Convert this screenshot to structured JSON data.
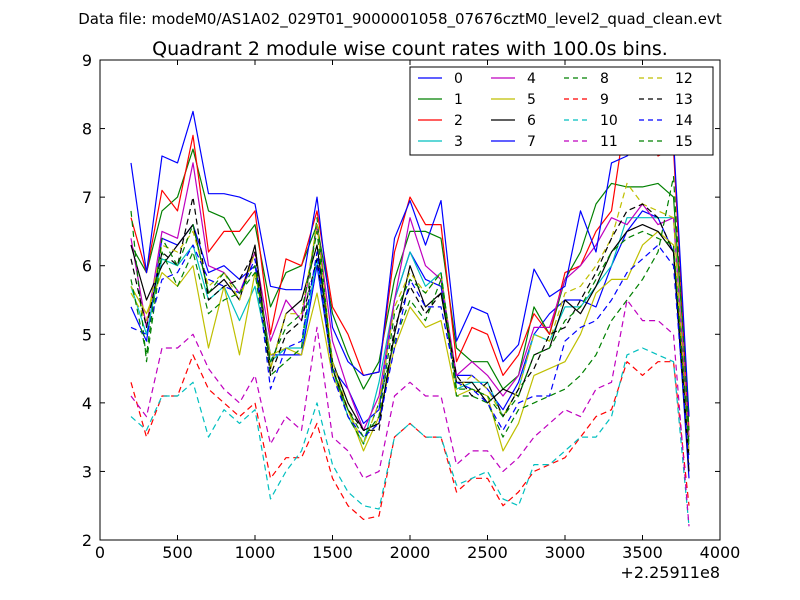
{
  "chart_data": {
    "type": "line",
    "suptitle": "Data file: modeM0/AS1A02_029T01_9000001058_07676cztM0_level2_quad_clean.evt",
    "title": "Quadrant 2 module wise count rates with 100.0s bins.",
    "xlabel": "",
    "ylabel": "",
    "x_offset_label": "+2.25911e8",
    "xlim": [
      0,
      4000
    ],
    "ylim": [
      2,
      9
    ],
    "xticks": [
      0,
      500,
      1000,
      1500,
      2000,
      2500,
      3000,
      3500,
      4000
    ],
    "yticks": [
      2,
      3,
      4,
      5,
      6,
      7,
      8,
      9
    ],
    "grid": false,
    "legend_position": "top-right",
    "x": [
      200,
      300,
      400,
      500,
      600,
      700,
      800,
      900,
      1000,
      1100,
      1200,
      1300,
      1400,
      1500,
      1600,
      1700,
      1800,
      1900,
      2000,
      2100,
      2200,
      2300,
      2400,
      2500,
      2600,
      2700,
      2800,
      2900,
      3000,
      3100,
      3200,
      3300,
      3400,
      3500,
      3600,
      3700,
      3800
    ],
    "series": [
      {
        "name": "0",
        "color": "#0000ff",
        "style": "solid",
        "values": [
          5.4,
          4.9,
          6.4,
          6.3,
          6.6,
          5.9,
          6.0,
          5.8,
          6.0,
          4.7,
          4.7,
          4.7,
          6.0,
          4.5,
          4.2,
          3.7,
          3.9,
          5.5,
          6.2,
          5.8,
          5.7,
          4.4,
          4.4,
          4.2,
          3.9,
          4.3,
          5.0,
          5.3,
          5.5,
          5.5,
          5.4,
          6.0,
          6.5,
          6.8,
          6.7,
          6.2,
          2.9
        ]
      },
      {
        "name": "1",
        "color": "#008000",
        "style": "solid",
        "values": [
          6.3,
          5.9,
          6.8,
          7.0,
          7.7,
          6.8,
          6.7,
          6.3,
          6.6,
          5.4,
          5.9,
          6.0,
          6.6,
          5.3,
          4.7,
          4.2,
          4.6,
          5.8,
          6.5,
          6.5,
          6.4,
          4.8,
          4.6,
          4.6,
          4.2,
          4.4,
          5.4,
          5.0,
          5.8,
          6.2,
          6.9,
          7.2,
          7.15,
          7.15,
          7.2,
          7.0,
          3.8
        ]
      },
      {
        "name": "2",
        "color": "#ff0000",
        "style": "solid",
        "values": [
          6.7,
          5.9,
          7.1,
          6.8,
          7.9,
          6.2,
          6.5,
          6.5,
          6.8,
          5.0,
          6.1,
          6.0,
          6.8,
          5.4,
          5.0,
          4.4,
          4.45,
          6.2,
          7.0,
          6.6,
          6.6,
          4.6,
          5.1,
          5.0,
          4.4,
          4.7,
          5.3,
          5.0,
          5.9,
          6.0,
          6.5,
          6.8,
          8.3,
          8.0,
          7.6,
          7.7,
          3.6
        ]
      },
      {
        "name": "3",
        "color": "#00bfbf",
        "style": "solid",
        "values": [
          5.7,
          5.0,
          6.1,
          6.0,
          6.3,
          5.5,
          5.7,
          5.2,
          5.7,
          4.6,
          4.8,
          4.8,
          6.1,
          4.5,
          3.8,
          3.4,
          4.3,
          5.5,
          6.2,
          5.7,
          5.9,
          4.2,
          4.3,
          4.3,
          3.8,
          4.2,
          5.0,
          4.9,
          5.4,
          5.4,
          5.7,
          6.0,
          6.7,
          6.7,
          6.7,
          6.7,
          3.4
        ]
      },
      {
        "name": "4",
        "color": "#bf00bf",
        "style": "solid",
        "values": [
          6.4,
          5.1,
          6.5,
          6.4,
          7.5,
          6.0,
          5.9,
          5.6,
          6.2,
          4.9,
          5.5,
          5.2,
          6.6,
          4.9,
          4.2,
          3.6,
          4.1,
          5.5,
          6.7,
          6.0,
          5.8,
          4.4,
          4.6,
          4.4,
          4.1,
          4.4,
          5.1,
          5.1,
          5.8,
          6.0,
          6.3,
          6.7,
          6.6,
          6.9,
          6.6,
          6.7,
          3.5
        ]
      },
      {
        "name": "5",
        "color": "#bfbf00",
        "style": "solid",
        "values": [
          5.7,
          5.3,
          5.9,
          5.7,
          6.0,
          4.8,
          5.7,
          4.7,
          5.9,
          4.7,
          4.8,
          4.7,
          5.6,
          4.4,
          3.9,
          3.3,
          3.8,
          4.8,
          5.4,
          5.1,
          5.2,
          4.1,
          4.2,
          4.1,
          3.3,
          3.7,
          4.4,
          4.5,
          4.6,
          5.0,
          5.6,
          5.8,
          5.8,
          6.3,
          6.5,
          6.3,
          3.3
        ]
      },
      {
        "name": "6",
        "color": "#000000",
        "style": "solid",
        "values": [
          6.3,
          5.5,
          6.0,
          6.3,
          6.6,
          5.6,
          5.8,
          5.5,
          6.3,
          4.5,
          5.3,
          5.5,
          6.3,
          4.6,
          4.0,
          3.6,
          3.7,
          5.0,
          6.0,
          5.4,
          5.6,
          4.3,
          4.3,
          4.0,
          4.2,
          4.1,
          4.7,
          4.8,
          5.5,
          5.3,
          5.7,
          6.2,
          6.5,
          6.6,
          6.5,
          6.2,
          3.0
        ]
      },
      {
        "name": "7",
        "color": "#0000ff",
        "style": "solid",
        "values": [
          7.5,
          5.9,
          7.6,
          7.5,
          8.25,
          7.05,
          7.05,
          7.0,
          6.9,
          5.7,
          5.65,
          5.65,
          7.0,
          5.1,
          4.6,
          4.4,
          4.45,
          6.4,
          6.95,
          6.3,
          6.95,
          4.9,
          5.4,
          5.3,
          4.6,
          4.85,
          5.95,
          5.55,
          5.7,
          6.8,
          6.2,
          7.5,
          7.6,
          7.8,
          8.05,
          7.85,
          3.8
        ]
      },
      {
        "name": "8",
        "color": "#008000",
        "style": "dashed",
        "values": [
          6.8,
          4.6,
          6.2,
          5.7,
          6.2,
          5.3,
          5.5,
          5.6,
          5.9,
          4.4,
          4.6,
          4.8,
          6.7,
          4.5,
          3.8,
          3.4,
          4.0,
          4.9,
          5.5,
          5.2,
          5.8,
          4.1,
          4.1,
          4.0,
          3.5,
          3.9,
          4.0,
          4.1,
          4.2,
          4.4,
          4.7,
          5.2,
          5.5,
          5.8,
          6.2,
          7.3,
          3.6
        ]
      },
      {
        "name": "9",
        "color": "#ff0000",
        "style": "dashed",
        "values": [
          4.3,
          3.5,
          4.1,
          4.1,
          4.7,
          4.2,
          4.0,
          3.8,
          4.0,
          2.9,
          3.2,
          3.2,
          3.7,
          2.9,
          2.5,
          2.3,
          2.35,
          3.5,
          3.7,
          3.5,
          3.5,
          2.7,
          2.9,
          2.9,
          2.5,
          2.7,
          3.0,
          3.1,
          3.2,
          3.5,
          3.8,
          3.9,
          4.6,
          4.4,
          4.6,
          4.6,
          2.5
        ]
      },
      {
        "name": "10",
        "color": "#00bfbf",
        "style": "dashed",
        "values": [
          3.8,
          3.6,
          4.1,
          4.1,
          4.3,
          3.5,
          3.9,
          3.7,
          3.9,
          2.6,
          3.0,
          3.3,
          4.0,
          3.1,
          2.7,
          2.5,
          2.45,
          3.5,
          3.7,
          3.5,
          3.5,
          2.8,
          2.9,
          3.0,
          2.6,
          2.5,
          3.1,
          3.1,
          3.3,
          3.5,
          3.5,
          3.8,
          4.7,
          4.8,
          4.7,
          4.6,
          2.2
        ]
      },
      {
        "name": "11",
        "color": "#bf00bf",
        "style": "dashed",
        "values": [
          4.1,
          3.8,
          4.8,
          4.8,
          5.0,
          4.5,
          4.2,
          4.0,
          4.4,
          3.4,
          3.8,
          3.6,
          5.1,
          3.5,
          3.3,
          2.9,
          3.0,
          4.1,
          4.3,
          4.1,
          4.1,
          3.1,
          3.3,
          3.3,
          3.0,
          3.2,
          3.5,
          3.7,
          3.9,
          3.8,
          4.2,
          4.3,
          5.5,
          5.2,
          5.2,
          5.0,
          2.2
        ]
      },
      {
        "name": "12",
        "color": "#bfbf00",
        "style": "dashed",
        "values": [
          5.6,
          5.2,
          6.3,
          6.2,
          6.5,
          5.7,
          5.9,
          5.5,
          6.2,
          4.5,
          5.3,
          5.3,
          6.6,
          4.6,
          3.9,
          3.4,
          4.0,
          5.4,
          5.9,
          5.6,
          5.9,
          4.2,
          4.4,
          4.2,
          3.8,
          4.2,
          5.0,
          4.9,
          5.6,
          5.7,
          6.0,
          6.4,
          7.2,
          6.9,
          6.8,
          6.7,
          3.3
        ]
      },
      {
        "name": "13",
        "color": "#000000",
        "style": "dashed",
        "values": [
          6.1,
          5.1,
          6.2,
          6.0,
          7.0,
          5.5,
          5.7,
          5.8,
          6.2,
          4.4,
          5.0,
          5.2,
          6.1,
          4.5,
          3.9,
          3.6,
          3.6,
          5.1,
          5.7,
          5.3,
          5.6,
          4.4,
          4.1,
          4.3,
          3.8,
          4.2,
          4.5,
          5.0,
          5.1,
          5.5,
          5.9,
          6.4,
          6.8,
          6.9,
          6.7,
          6.2,
          3.2
        ]
      },
      {
        "name": "14",
        "color": "#0000ff",
        "style": "dashed",
        "values": [
          5.1,
          5.0,
          5.8,
          5.9,
          6.3,
          5.8,
          5.7,
          5.6,
          6.1,
          4.2,
          4.8,
          4.9,
          6.2,
          4.4,
          3.8,
          3.5,
          3.7,
          4.8,
          5.8,
          5.4,
          5.4,
          4.3,
          4.2,
          4.0,
          3.6,
          4.0,
          4.1,
          4.1,
          4.9,
          5.1,
          5.2,
          5.5,
          5.9,
          6.1,
          6.3,
          6.0,
          3.1
        ]
      },
      {
        "name": "15",
        "color": "#008000",
        "style": "dashed",
        "values": [
          5.8,
          4.7,
          6.4,
          6.0,
          6.6,
          5.6,
          5.9,
          5.6,
          6.0,
          4.6,
          5.1,
          5.3,
          6.5,
          4.5,
          3.9,
          3.5,
          3.8,
          5.3,
          5.8,
          5.6,
          5.9,
          4.2,
          4.2,
          4.1,
          3.8,
          4.1,
          4.7,
          4.8,
          5.2,
          5.4,
          5.8,
          6.2,
          6.4,
          6.5,
          6.4,
          6.3,
          3.4
        ]
      }
    ]
  }
}
